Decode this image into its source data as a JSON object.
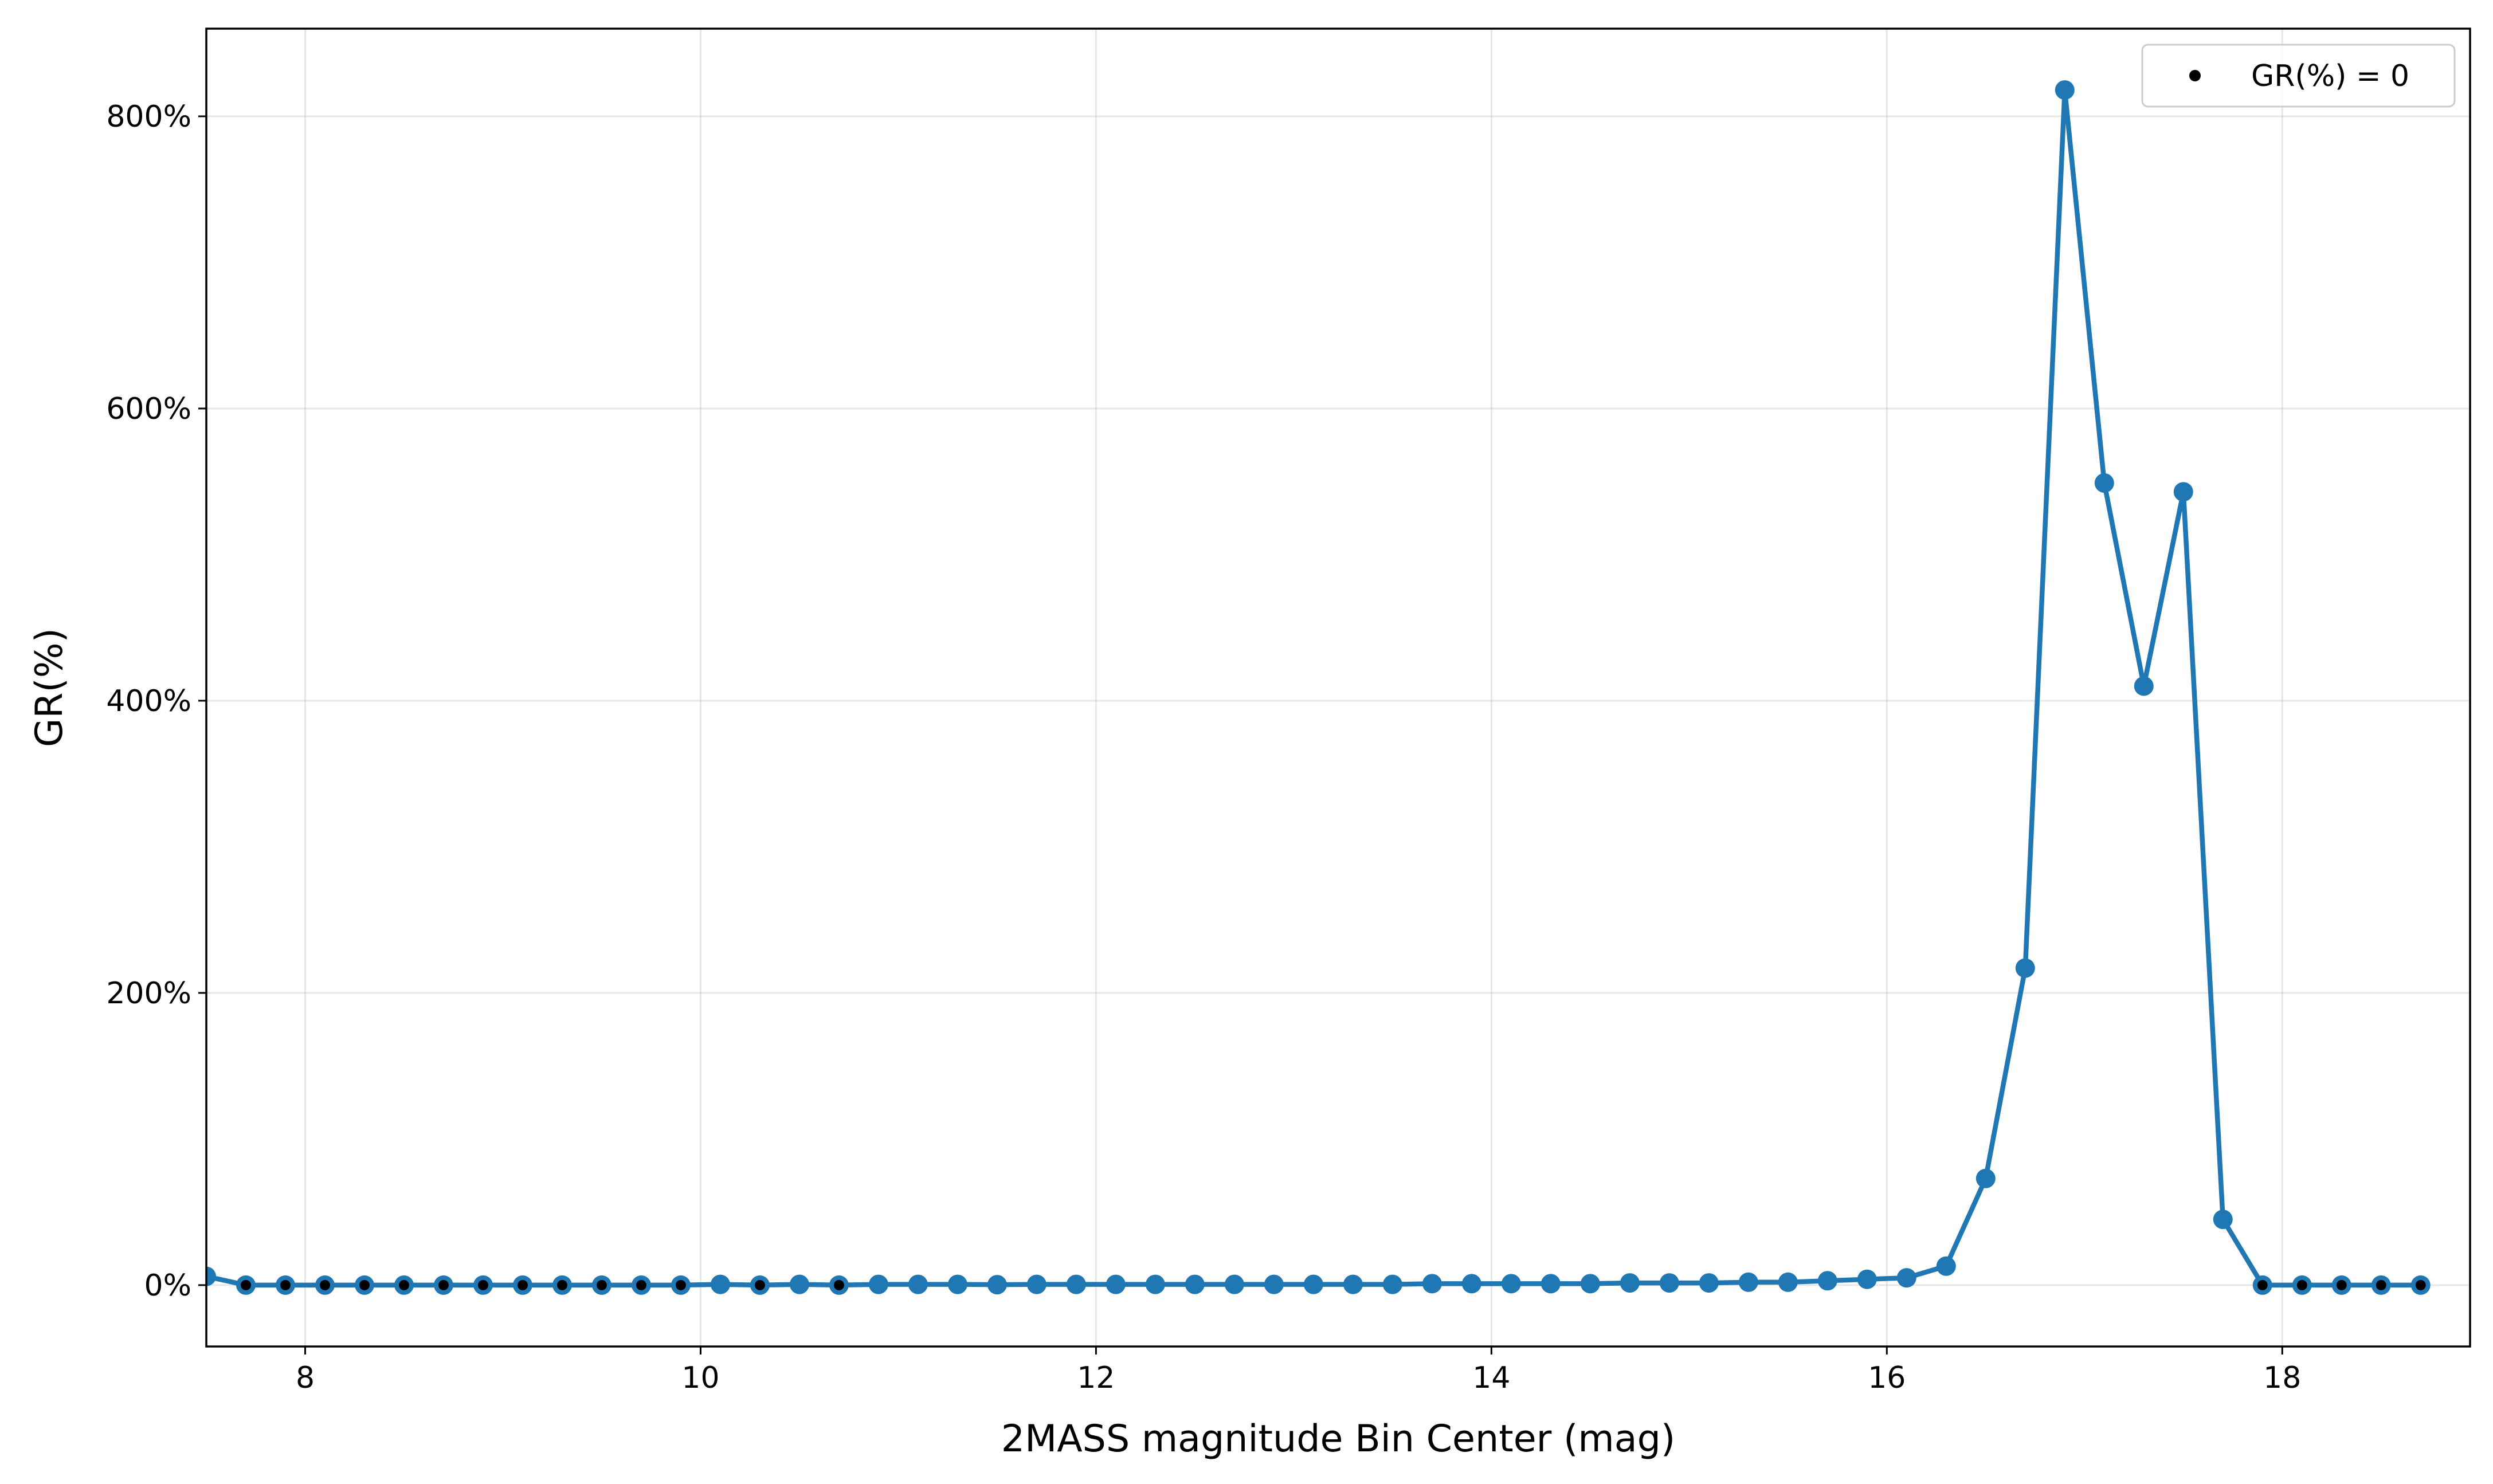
{
  "chart_data": {
    "type": "line",
    "xlabel": "2MASS magnitude Bin Center (mag)",
    "ylabel": "GR(%)",
    "xlim": [
      7.5,
      18.95
    ],
    "ylim": [
      -42,
      860
    ],
    "xticks": [
      8,
      10,
      12,
      14,
      16,
      18
    ],
    "xtick_labels": [
      "8",
      "10",
      "12",
      "14",
      "16",
      "18"
    ],
    "yticks": [
      0,
      200,
      400,
      600,
      800
    ],
    "ytick_labels": [
      "0%",
      "200%",
      "400%",
      "600%",
      "800%"
    ],
    "grid": true,
    "legend": {
      "position": "top-right",
      "entries": [
        "GR(%) = 0"
      ]
    },
    "series": [
      {
        "color": "#1f77b4",
        "marker": "circle",
        "x": [
          7.5,
          7.7,
          7.9,
          8.1,
          8.3,
          8.5,
          8.7,
          8.9,
          9.1,
          9.3,
          9.5,
          9.7,
          9.9,
          10.1,
          10.3,
          10.5,
          10.7,
          10.9,
          11.1,
          11.3,
          11.5,
          11.7,
          11.9,
          12.1,
          12.3,
          12.5,
          12.7,
          12.9,
          13.1,
          13.3,
          13.5,
          13.7,
          13.9,
          14.1,
          14.3,
          14.5,
          14.7,
          14.9,
          15.1,
          15.3,
          15.5,
          15.7,
          15.9,
          16.1,
          16.3,
          16.5,
          16.7,
          16.9,
          17.1,
          17.3,
          17.5,
          17.7,
          17.9,
          18.1,
          18.3,
          18.5,
          18.7
        ],
        "y": [
          6,
          0,
          0,
          0,
          0,
          0,
          0,
          0,
          0,
          0,
          0,
          0,
          0,
          0.5,
          0,
          0.5,
          0,
          0.5,
          0.5,
          0.5,
          0.3,
          0.5,
          0.5,
          0.5,
          0.5,
          0.5,
          0.5,
          0.5,
          0.5,
          0.5,
          0.5,
          1,
          1,
          1,
          1,
          1,
          1.5,
          1.5,
          1.5,
          2,
          2,
          3,
          4,
          5,
          13,
          73,
          217,
          818,
          549,
          410,
          543,
          45,
          0,
          0,
          0,
          0,
          0
        ]
      },
      {
        "name": "GR(%) = 0",
        "color": "#000000",
        "marker": "dot",
        "x": [
          7.7,
          7.9,
          8.1,
          8.3,
          8.5,
          8.7,
          8.9,
          9.1,
          9.3,
          9.5,
          9.7,
          9.9,
          10.3,
          10.7,
          17.9,
          18.1,
          18.3,
          18.5,
          18.7
        ],
        "y": [
          0,
          0,
          0,
          0,
          0,
          0,
          0,
          0,
          0,
          0,
          0,
          0,
          0,
          0,
          0,
          0,
          0,
          0,
          0
        ]
      }
    ]
  }
}
